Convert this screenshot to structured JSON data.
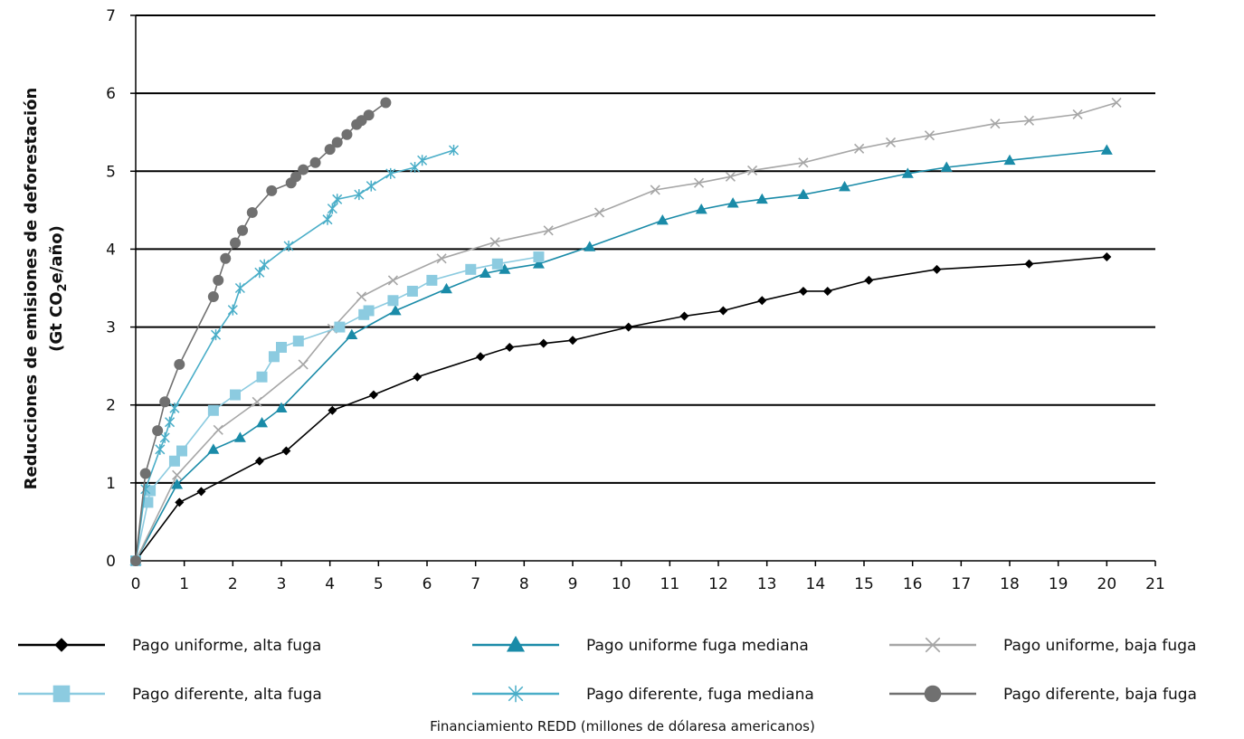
{
  "chart_data": {
    "type": "line",
    "title": "",
    "ylabel_line1": "Reducciones de emisiones de deforestación",
    "ylabel_line2_prefix": "(Gt CO",
    "ylabel_line2_sub": "2",
    "ylabel_line2_suffix": "e/año)",
    "xlabel": "Financiamiento REDD (millones de dólaresa americanos)",
    "xlim": [
      0,
      21
    ],
    "ylim": [
      0,
      7
    ],
    "xticks": [
      "0",
      "1",
      "2",
      "3",
      "4",
      "5",
      "6",
      "7",
      "8",
      "9",
      "10",
      "11",
      "12",
      "13",
      "14",
      "15",
      "16",
      "17",
      "18",
      "19",
      "20",
      "21"
    ],
    "yticks": [
      "0",
      "1",
      "2",
      "3",
      "4",
      "5",
      "6",
      "7"
    ],
    "grid": "horizontal",
    "legend_position": "bottom",
    "series": [
      {
        "name": "Pago uniforme, alta fuga",
        "color": "#000000",
        "marker": "diamond",
        "points": [
          [
            0,
            0
          ],
          [
            0.9,
            0.75
          ],
          [
            1.35,
            0.89
          ],
          [
            2.55,
            1.28
          ],
          [
            3.1,
            1.41
          ],
          [
            4.05,
            1.93
          ],
          [
            4.9,
            2.13
          ],
          [
            5.8,
            2.36
          ],
          [
            7.1,
            2.62
          ],
          [
            7.7,
            2.74
          ],
          [
            8.4,
            2.79
          ],
          [
            9.0,
            2.83
          ],
          [
            10.15,
            3.0
          ],
          [
            11.3,
            3.14
          ],
          [
            12.1,
            3.21
          ],
          [
            12.9,
            3.34
          ],
          [
            13.75,
            3.46
          ],
          [
            14.25,
            3.46
          ],
          [
            15.1,
            3.6
          ],
          [
            16.5,
            3.74
          ],
          [
            18.4,
            3.81
          ],
          [
            20.0,
            3.9
          ]
        ]
      },
      {
        "name": "Pago uniforme fuga mediana",
        "color": "#1a8ba8",
        "marker": "triangle",
        "points": [
          [
            0,
            0
          ],
          [
            0.85,
            0.98
          ],
          [
            1.6,
            1.43
          ],
          [
            2.15,
            1.58
          ],
          [
            2.6,
            1.77
          ],
          [
            3.0,
            1.96
          ],
          [
            4.45,
            2.9
          ],
          [
            5.35,
            3.21
          ],
          [
            6.4,
            3.49
          ],
          [
            7.2,
            3.69
          ],
          [
            7.6,
            3.74
          ],
          [
            8.3,
            3.81
          ],
          [
            9.35,
            4.03
          ],
          [
            10.85,
            4.37
          ],
          [
            11.65,
            4.51
          ],
          [
            12.3,
            4.59
          ],
          [
            12.9,
            4.64
          ],
          [
            13.75,
            4.7
          ],
          [
            14.6,
            4.8
          ],
          [
            15.9,
            4.97
          ],
          [
            16.7,
            5.05
          ],
          [
            18.0,
            5.14
          ],
          [
            20.0,
            5.27
          ]
        ]
      },
      {
        "name": "Pago uniforme, baja fuga",
        "color": "#a6a6a6",
        "marker": "x",
        "points": [
          [
            0,
            0
          ],
          [
            0.85,
            1.1
          ],
          [
            1.7,
            1.68
          ],
          [
            2.5,
            2.04
          ],
          [
            3.45,
            2.52
          ],
          [
            4.05,
            2.98
          ],
          [
            4.65,
            3.39
          ],
          [
            5.3,
            3.6
          ],
          [
            6.3,
            3.88
          ],
          [
            7.4,
            4.09
          ],
          [
            8.5,
            4.24
          ],
          [
            9.55,
            4.47
          ],
          [
            10.7,
            4.76
          ],
          [
            11.6,
            4.85
          ],
          [
            12.25,
            4.93
          ],
          [
            12.7,
            5.01
          ],
          [
            13.75,
            5.11
          ],
          [
            14.9,
            5.29
          ],
          [
            15.55,
            5.37
          ],
          [
            16.35,
            5.46
          ],
          [
            17.7,
            5.61
          ],
          [
            18.4,
            5.65
          ],
          [
            19.4,
            5.73
          ],
          [
            20.2,
            5.88
          ]
        ]
      },
      {
        "name": "Pago diferente, alta fuga",
        "color": "#8ccbe0",
        "marker": "square",
        "points": [
          [
            0,
            0
          ],
          [
            0.25,
            0.75
          ],
          [
            0.3,
            0.9
          ],
          [
            0.8,
            1.28
          ],
          [
            0.95,
            1.41
          ],
          [
            1.6,
            1.93
          ],
          [
            2.05,
            2.13
          ],
          [
            2.6,
            2.36
          ],
          [
            2.85,
            2.62
          ],
          [
            3.0,
            2.74
          ],
          [
            3.35,
            2.82
          ],
          [
            4.2,
            3.0
          ],
          [
            4.7,
            3.16
          ],
          [
            4.8,
            3.21
          ],
          [
            5.3,
            3.34
          ],
          [
            5.7,
            3.46
          ],
          [
            6.1,
            3.6
          ],
          [
            6.9,
            3.74
          ],
          [
            7.45,
            3.81
          ],
          [
            8.3,
            3.9
          ]
        ]
      },
      {
        "name": "Pago diferente, fuga mediana",
        "color": "#4aaec8",
        "marker": "star",
        "points": [
          [
            0,
            0
          ],
          [
            0.2,
            0.92
          ],
          [
            0.5,
            1.43
          ],
          [
            0.6,
            1.58
          ],
          [
            0.7,
            1.78
          ],
          [
            0.8,
            1.96
          ],
          [
            1.65,
            2.9
          ],
          [
            2.0,
            3.22
          ],
          [
            2.15,
            3.5
          ],
          [
            2.55,
            3.7
          ],
          [
            2.65,
            3.8
          ],
          [
            3.15,
            4.04
          ],
          [
            3.95,
            4.38
          ],
          [
            4.05,
            4.52
          ],
          [
            4.15,
            4.64
          ],
          [
            4.6,
            4.7
          ],
          [
            4.85,
            4.81
          ],
          [
            5.25,
            4.97
          ],
          [
            5.75,
            5.05
          ],
          [
            5.9,
            5.14
          ],
          [
            6.55,
            5.27
          ]
        ]
      },
      {
        "name": "Pago diferente, baja fuga",
        "color": "#707070",
        "marker": "circle",
        "points": [
          [
            0,
            0
          ],
          [
            0.2,
            1.12
          ],
          [
            0.45,
            1.67
          ],
          [
            0.6,
            2.04
          ],
          [
            0.9,
            2.52
          ],
          [
            1.6,
            3.39
          ],
          [
            1.7,
            3.6
          ],
          [
            1.85,
            3.88
          ],
          [
            2.05,
            4.08
          ],
          [
            2.2,
            4.24
          ],
          [
            2.4,
            4.47
          ],
          [
            2.8,
            4.75
          ],
          [
            3.2,
            4.85
          ],
          [
            3.3,
            4.93
          ],
          [
            3.45,
            5.02
          ],
          [
            3.7,
            5.11
          ],
          [
            4.0,
            5.28
          ],
          [
            4.15,
            5.37
          ],
          [
            4.35,
            5.47
          ],
          [
            4.55,
            5.6
          ],
          [
            4.65,
            5.65
          ],
          [
            4.8,
            5.72
          ],
          [
            5.15,
            5.88
          ]
        ]
      }
    ]
  }
}
